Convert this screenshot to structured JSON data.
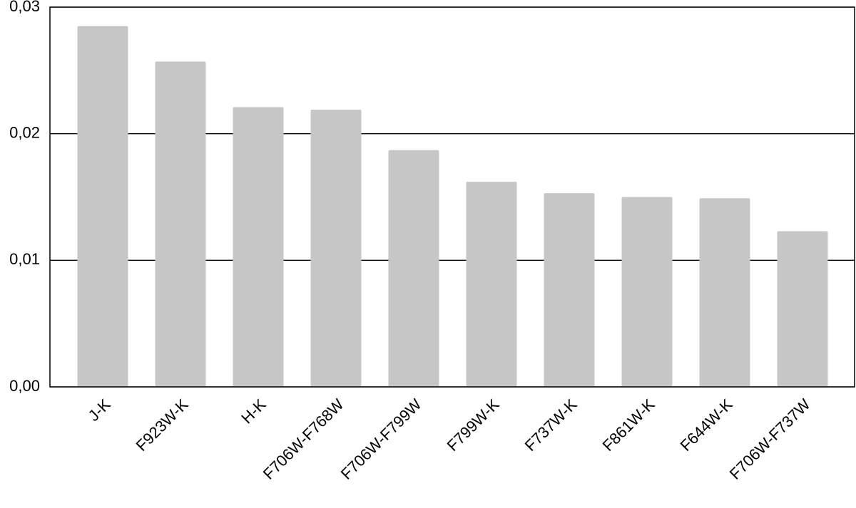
{
  "chart_data": {
    "type": "bar",
    "categories": [
      "J-K",
      "F923W-K",
      "H-K",
      "F706W-F768W",
      "F706W-F799W",
      "F799W-K",
      "F737W-K",
      "F861W-K",
      "F644W-K",
      "F706W-F737W"
    ],
    "values": [
      0.0285,
      0.0257,
      0.0221,
      0.0219,
      0.0187,
      0.0162,
      0.0153,
      0.015,
      0.0149,
      0.0123
    ],
    "color": "#c6c6c6",
    "ylim": [
      0,
      0.03
    ],
    "yticks": [
      {
        "value": 0,
        "label": "0,00"
      },
      {
        "value": 0.01,
        "label": "0,01"
      },
      {
        "value": 0.02,
        "label": "0,02"
      },
      {
        "value": 0.03,
        "label": "0,03"
      }
    ],
    "grid": true
  }
}
